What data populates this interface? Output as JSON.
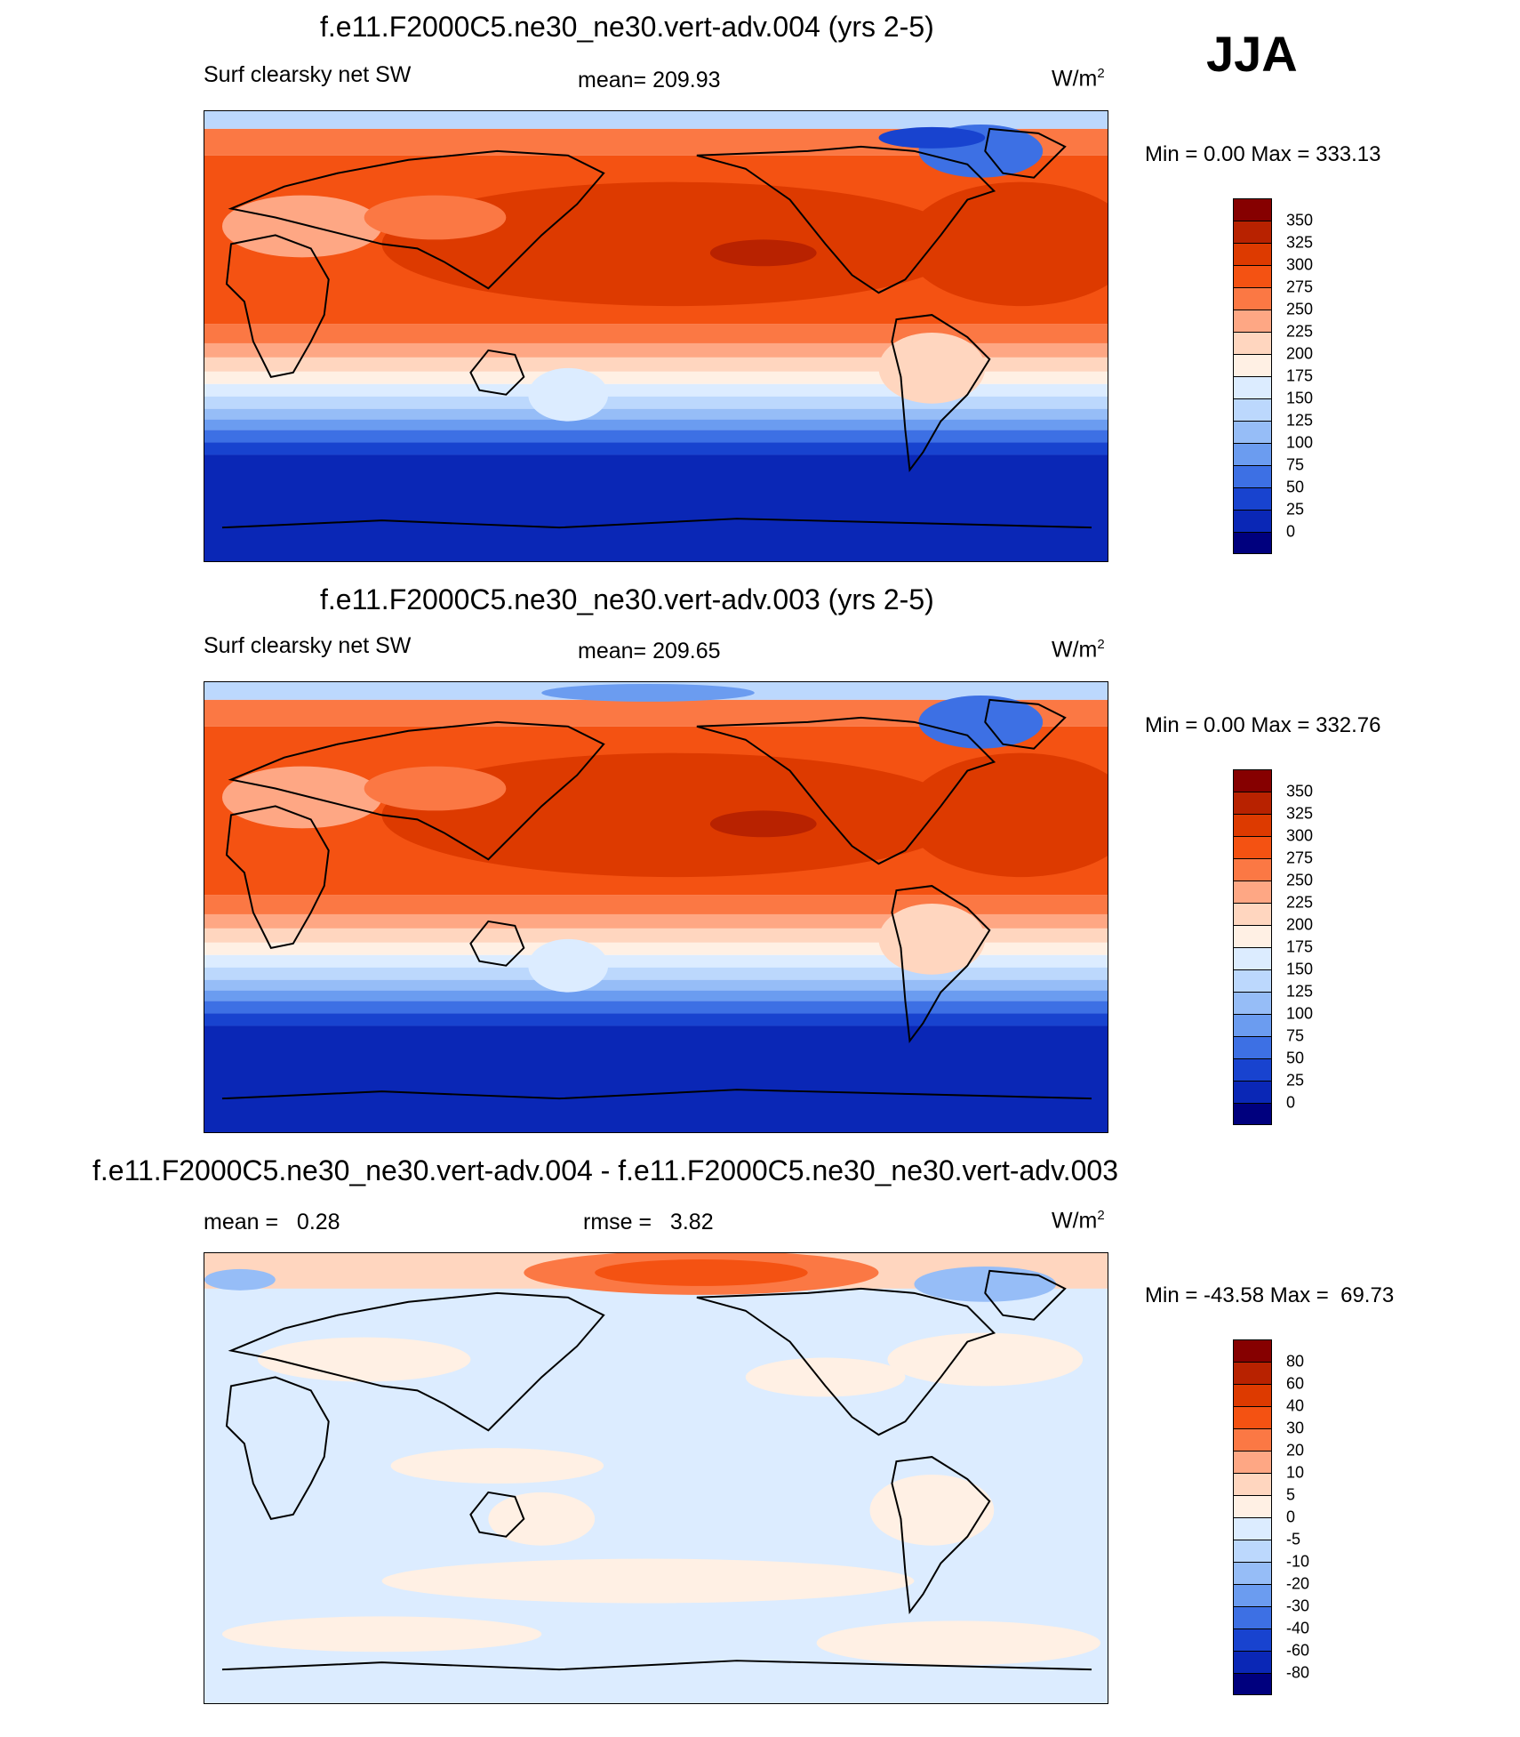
{
  "season": "JJA",
  "chart_data": [
    {
      "type": "heatmap",
      "title": "f.e11.F2000C5.ne30_ne30.vert-adv.004 (yrs 2-5)",
      "left_label": "Surf clearsky net SW",
      "center_label": "mean= 209.93",
      "units_base": "W/m",
      "units_sup": "2",
      "minmax": "Min =    0.00 Max = 333.13",
      "min": 0.0,
      "max": 333.13,
      "levels": [
        "350",
        "325",
        "300",
        "275",
        "250",
        "225",
        "200",
        "175",
        "150",
        "125",
        "100",
        "75",
        "50",
        "25",
        "0"
      ],
      "colors": [
        "#860000",
        "#b82200",
        "#dd3a00",
        "#f45212",
        "#fb7844",
        "#fea784",
        "#ffd6bf",
        "#fff0e4",
        "#dcecff",
        "#bcd8fd",
        "#96bdf7",
        "#6b9cf0",
        "#3d70e4",
        "#1843cf",
        "#0a27b6",
        "#00007e"
      ]
    },
    {
      "type": "heatmap",
      "title": "f.e11.F2000C5.ne30_ne30.vert-adv.003 (yrs 2-5)",
      "left_label": "Surf clearsky net SW",
      "center_label": "mean= 209.65",
      "units_base": "W/m",
      "units_sup": "2",
      "minmax": "Min =    0.00 Max = 332.76",
      "min": 0.0,
      "max": 332.76,
      "levels": [
        "350",
        "325",
        "300",
        "275",
        "250",
        "225",
        "200",
        "175",
        "150",
        "125",
        "100",
        "75",
        "50",
        "25",
        "0"
      ],
      "colors": [
        "#860000",
        "#b82200",
        "#dd3a00",
        "#f45212",
        "#fb7844",
        "#fea784",
        "#ffd6bf",
        "#fff0e4",
        "#dcecff",
        "#bcd8fd",
        "#96bdf7",
        "#6b9cf0",
        "#3d70e4",
        "#1843cf",
        "#0a27b6",
        "#00007e"
      ]
    },
    {
      "type": "heatmap",
      "title": "f.e11.F2000C5.ne30_ne30.vert-adv.004 - f.e11.F2000C5.ne30_ne30.vert-adv.003",
      "mean_label": "mean =   0.28",
      "rmse_label": "rmse =   3.82",
      "units_base": "W/m",
      "units_sup": "2",
      "minmax": "Min = -43.58 Max =  69.73",
      "min": -43.58,
      "max": 69.73,
      "levels": [
        "80",
        "60",
        "40",
        "30",
        "20",
        "10",
        "5",
        "0",
        "-5",
        "-10",
        "-20",
        "-30",
        "-40",
        "-60",
        "-80"
      ],
      "colors": [
        "#860000",
        "#b82200",
        "#dd3a00",
        "#f45212",
        "#fb7844",
        "#fea784",
        "#ffd6bf",
        "#fff0e4",
        "#dcecff",
        "#bcd8fd",
        "#96bdf7",
        "#6b9cf0",
        "#3d70e4",
        "#1843cf",
        "#0a27b6",
        "#00007e"
      ]
    }
  ]
}
